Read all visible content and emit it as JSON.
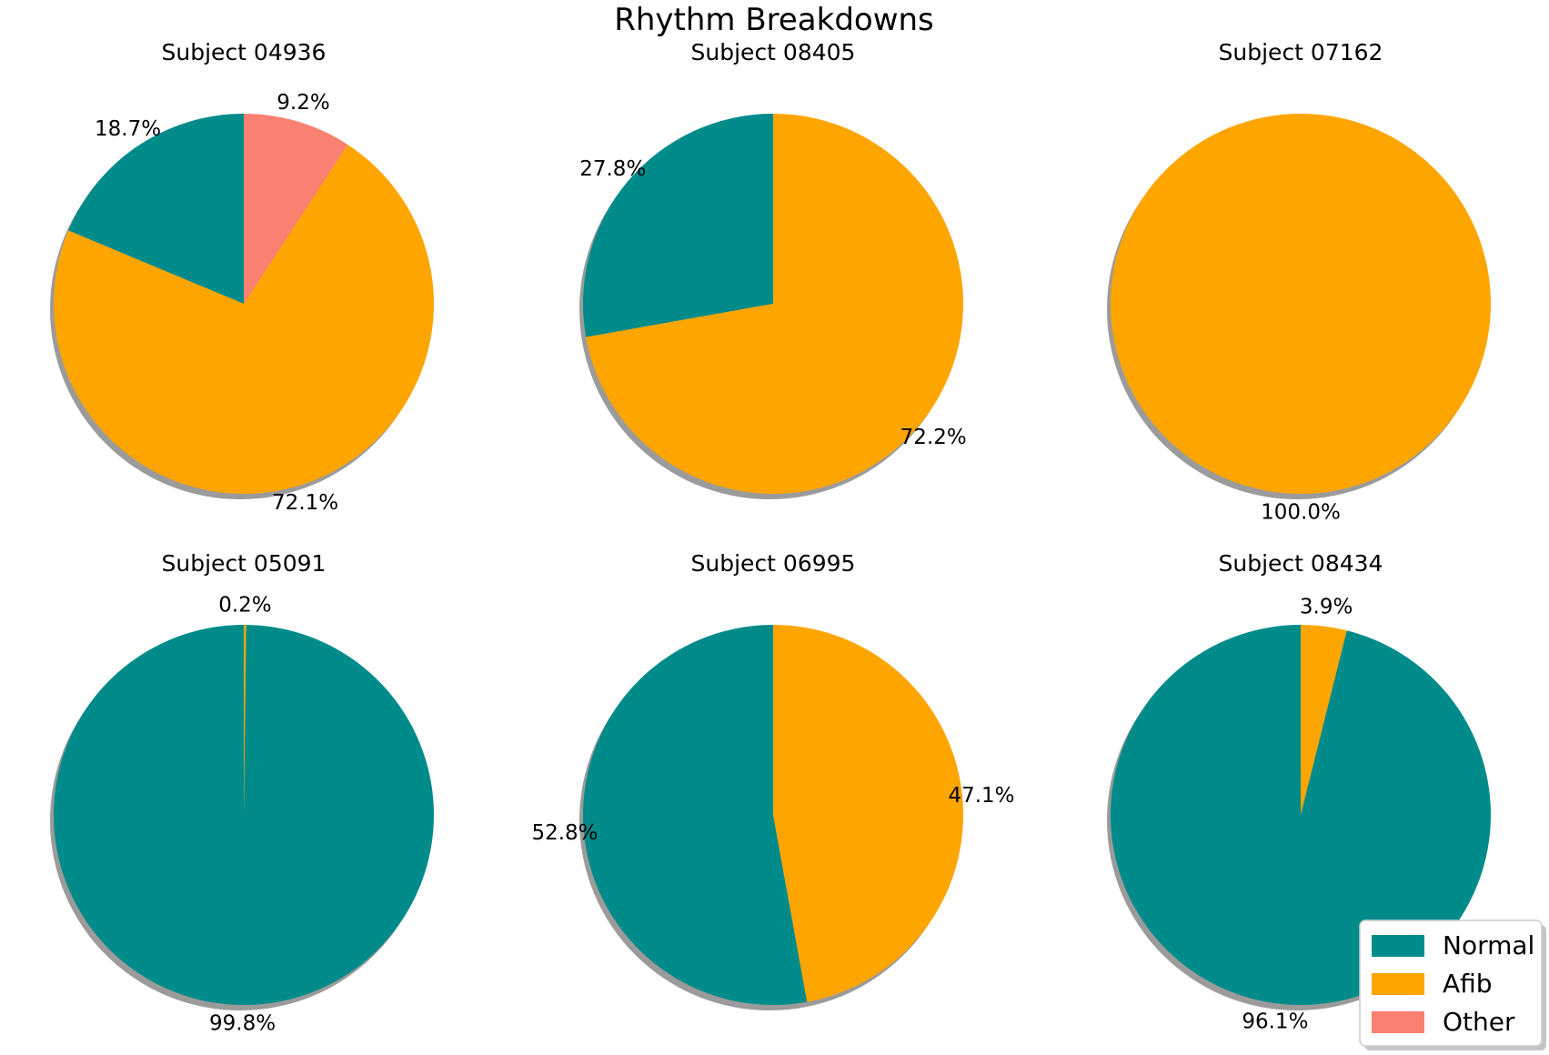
{
  "chart_data": {
    "type": "pie",
    "title": "Rhythm Breakdowns",
    "categories": [
      "Normal",
      "Afib",
      "Other"
    ],
    "colors": {
      "Normal": "#008b8b",
      "Afib": "#ffa500",
      "Other": "#fa8072"
    },
    "legend": {
      "placement": "bottom-right",
      "entries": [
        "Normal",
        "Afib",
        "Other"
      ]
    },
    "charts": [
      {
        "title": "Subject 04936",
        "values": [
          18.7,
          72.1,
          9.2
        ],
        "labels": [
          "18.7%",
          "72.1%",
          "9.2%"
        ]
      },
      {
        "title": "Subject 08405",
        "values": [
          27.8,
          72.2,
          0
        ],
        "labels": [
          "27.8%",
          "72.2%",
          ""
        ]
      },
      {
        "title": "Subject 07162",
        "values": [
          0,
          100.0,
          0
        ],
        "labels": [
          "",
          "100.0%",
          ""
        ]
      },
      {
        "title": "Subject 05091",
        "values": [
          99.8,
          0.2,
          0
        ],
        "labels": [
          "99.8%",
          "0.2%",
          ""
        ]
      },
      {
        "title": "Subject 06995",
        "values": [
          52.8,
          47.1,
          0
        ],
        "labels": [
          "52.8%",
          "47.1%",
          ""
        ]
      },
      {
        "title": "Subject 08434",
        "values": [
          96.1,
          3.9,
          0
        ],
        "labels": [
          "96.1%",
          "3.9%",
          ""
        ]
      }
    ]
  }
}
